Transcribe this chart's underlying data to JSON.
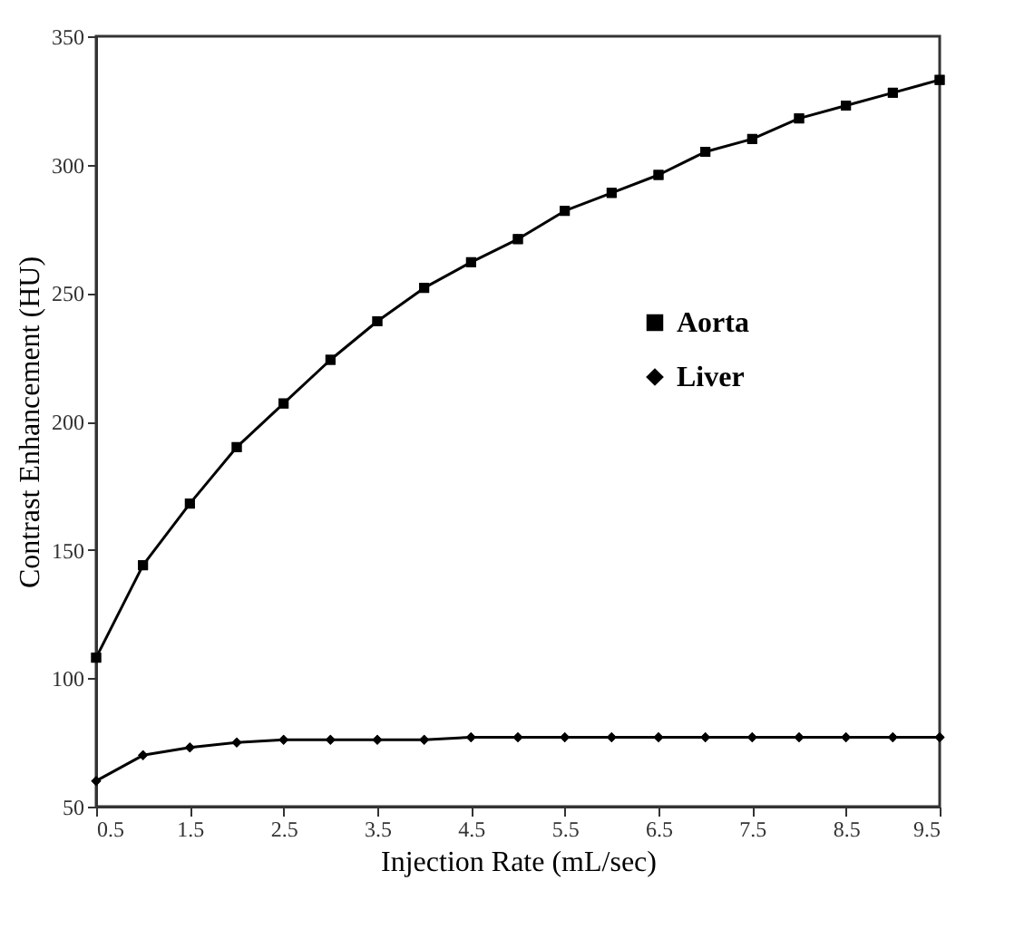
{
  "chart_data": {
    "type": "line",
    "xlabel": "Injection Rate (mL/sec)",
    "ylabel": "Contrast Enhancement (HU)",
    "x": [
      0.5,
      1.0,
      1.5,
      2.0,
      2.5,
      3.0,
      3.5,
      4.0,
      4.5,
      5.0,
      5.5,
      6.0,
      6.5,
      7.0,
      7.5,
      8.0,
      8.5,
      9.0,
      9.5
    ],
    "series": [
      {
        "name": "Aorta",
        "color": "#000000",
        "marker": "square",
        "values": [
          108,
          144,
          168,
          190,
          207,
          224,
          239,
          252,
          262,
          271,
          282,
          289,
          296,
          305,
          310,
          318,
          323,
          328,
          333
        ]
      },
      {
        "name": "Liver",
        "color": "#000000",
        "marker": "diamond",
        "values": [
          60,
          70,
          73,
          75,
          76,
          76,
          76,
          76,
          77,
          77,
          77,
          77,
          77,
          77,
          77,
          77,
          77,
          77,
          77
        ]
      }
    ],
    "xlim": [
      0.5,
      9.5
    ],
    "xticks": [
      0.5,
      1.5,
      2.5,
      3.5,
      4.5,
      5.5,
      6.5,
      7.5,
      8.5,
      9.5
    ],
    "ylim": [
      50,
      350
    ],
    "yticks": [
      50,
      100,
      150,
      200,
      250,
      300,
      350
    ],
    "grid": false,
    "legend": "right",
    "line_style": "solid"
  }
}
